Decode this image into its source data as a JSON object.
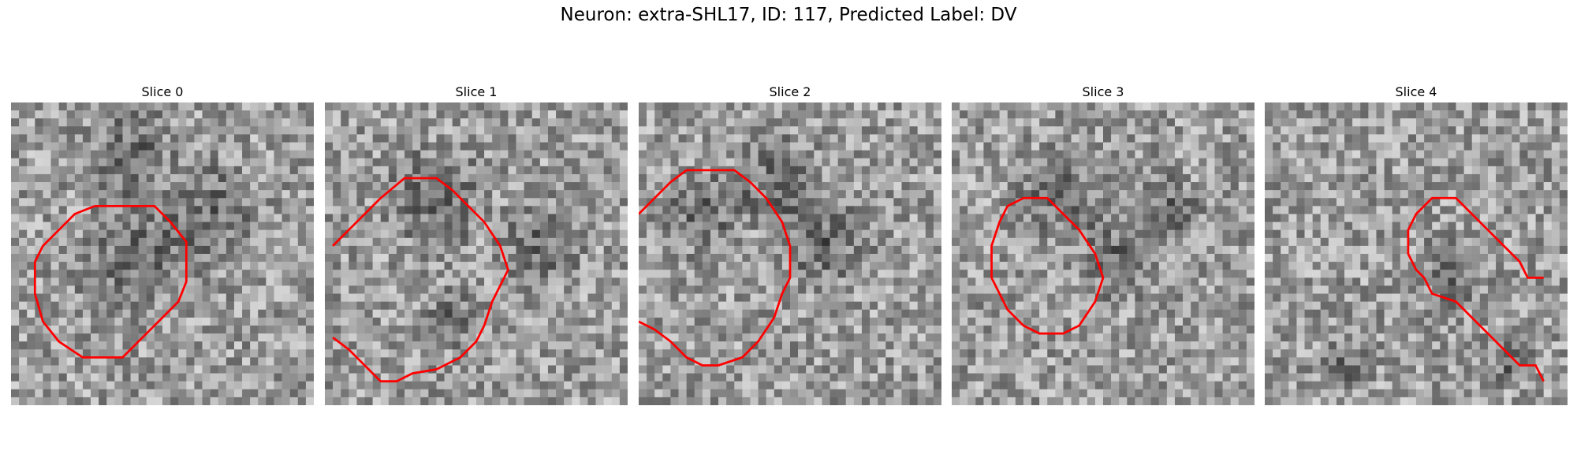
{
  "figure": {
    "title": "Neuron: extra-SHL17, ID: 117, Predicted Label: DV"
  },
  "colors": {
    "contour": "#ff0000",
    "background": "#ffffff"
  },
  "panels": [
    {
      "title": "Slice 0",
      "seed": 11,
      "dark_blobs": [
        [
          0.38,
          0.15,
          0.2
        ],
        [
          0.65,
          0.35,
          0.22
        ],
        [
          0.4,
          0.5,
          0.25
        ]
      ],
      "contour": [
        [
          21,
          26
        ],
        [
          36,
          26
        ],
        [
          40,
          30
        ],
        [
          44,
          35
        ],
        [
          44,
          45
        ],
        [
          42,
          50
        ],
        [
          38,
          54
        ],
        [
          36,
          56
        ],
        [
          34,
          58
        ],
        [
          28,
          64
        ],
        [
          18,
          64
        ],
        [
          12,
          60
        ],
        [
          8,
          55
        ],
        [
          6,
          48
        ],
        [
          6,
          40
        ],
        [
          8,
          36
        ],
        [
          12,
          32
        ],
        [
          16,
          28
        ],
        [
          21,
          26
        ]
      ]
    },
    {
      "title": "Slice 1",
      "seed": 23,
      "dark_blobs": [
        [
          0.35,
          0.3,
          0.22
        ],
        [
          0.7,
          0.45,
          0.18
        ],
        [
          0.4,
          0.7,
          0.12
        ]
      ],
      "contour": [
        [
          2,
          36
        ],
        [
          6,
          32
        ],
        [
          10,
          28
        ],
        [
          14,
          24
        ],
        [
          20,
          19
        ],
        [
          28,
          19
        ],
        [
          32,
          22
        ],
        [
          36,
          26
        ],
        [
          40,
          30
        ],
        [
          44,
          36
        ],
        [
          46,
          42
        ],
        [
          44,
          46
        ],
        [
          42,
          50
        ],
        [
          40,
          56
        ],
        [
          38,
          60
        ],
        [
          34,
          64
        ],
        [
          28,
          67
        ],
        [
          22,
          68
        ],
        [
          18,
          70
        ],
        [
          14,
          70
        ],
        [
          10,
          66
        ],
        [
          6,
          62
        ],
        [
          2,
          59
        ]
      ]
    },
    {
      "title": "Slice 2",
      "seed": 37,
      "dark_blobs": [
        [
          0.2,
          0.35,
          0.18
        ],
        [
          0.6,
          0.45,
          0.2
        ],
        [
          0.45,
          0.25,
          0.2
        ]
      ],
      "contour": [
        [
          0,
          28
        ],
        [
          4,
          24
        ],
        [
          8,
          20
        ],
        [
          12,
          17
        ],
        [
          24,
          17
        ],
        [
          28,
          20
        ],
        [
          32,
          24
        ],
        [
          36,
          30
        ],
        [
          38,
          36
        ],
        [
          38,
          44
        ],
        [
          36,
          48
        ],
        [
          34,
          54
        ],
        [
          30,
          60
        ],
        [
          26,
          64
        ],
        [
          20,
          66
        ],
        [
          16,
          66
        ],
        [
          12,
          64
        ],
        [
          8,
          60
        ],
        [
          4,
          57
        ],
        [
          0,
          55
        ]
      ]
    },
    {
      "title": "Slice 3",
      "seed": 51,
      "dark_blobs": [
        [
          0.35,
          0.3,
          0.2
        ],
        [
          0.55,
          0.5,
          0.18
        ],
        [
          0.7,
          0.35,
          0.15
        ]
      ],
      "contour": [
        [
          14,
          26
        ],
        [
          18,
          24
        ],
        [
          24,
          24
        ],
        [
          28,
          28
        ],
        [
          32,
          32
        ],
        [
          36,
          38
        ],
        [
          38,
          44
        ],
        [
          36,
          50
        ],
        [
          32,
          56
        ],
        [
          28,
          58
        ],
        [
          22,
          58
        ],
        [
          18,
          56
        ],
        [
          14,
          52
        ],
        [
          12,
          48
        ],
        [
          10,
          44
        ],
        [
          10,
          36
        ],
        [
          12,
          30
        ],
        [
          14,
          26
        ]
      ]
    },
    {
      "title": "Slice 4",
      "seed": 67,
      "dark_blobs": [
        [
          0.6,
          0.55,
          0.15
        ],
        [
          0.25,
          0.85,
          0.1
        ],
        [
          0.8,
          0.85,
          0.1
        ]
      ],
      "contour": [
        [
          56,
          32
        ],
        [
          52,
          28
        ],
        [
          48,
          24
        ],
        [
          42,
          24
        ],
        [
          38,
          28
        ],
        [
          36,
          32
        ],
        [
          36,
          38
        ],
        [
          38,
          42
        ],
        [
          40,
          44
        ],
        [
          42,
          48
        ],
        [
          48,
          50
        ],
        [
          52,
          54
        ],
        [
          56,
          58
        ],
        [
          60,
          62
        ],
        [
          64,
          66
        ],
        [
          68,
          66
        ],
        [
          70,
          70
        ]
      ]
    }
  ],
  "ghost_contour_panel4": [
    [
      56,
      32
    ],
    [
      60,
      36
    ],
    [
      64,
      40
    ],
    [
      66,
      44
    ],
    [
      70,
      44
    ]
  ]
}
